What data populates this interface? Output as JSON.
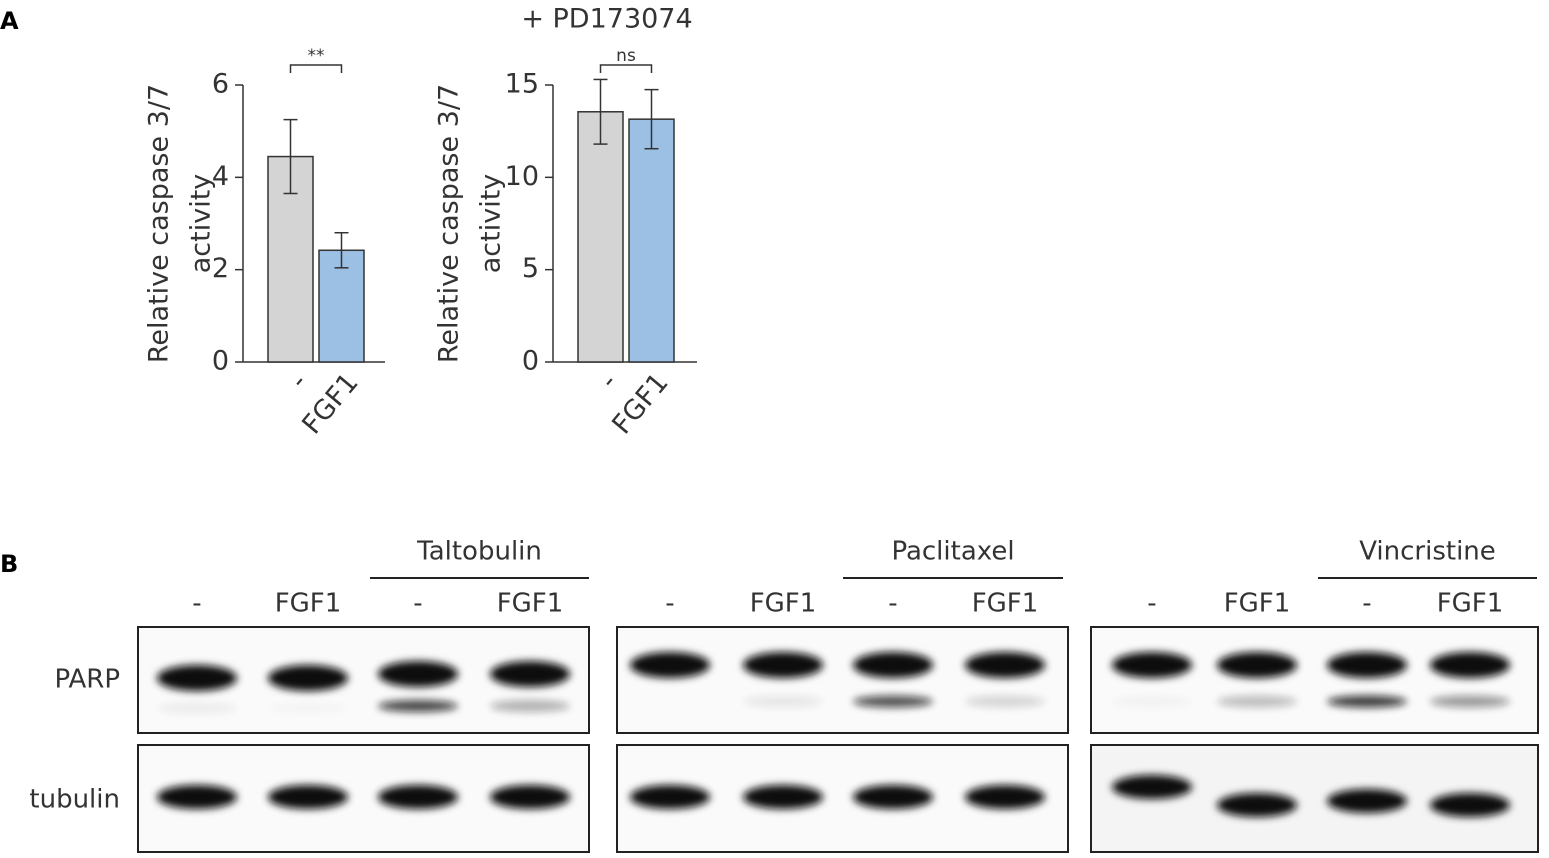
{
  "panel_labels": [
    "A",
    "B"
  ],
  "chart_data": [
    {
      "type": "bar",
      "y_label": [
        "Relative caspase 3/7",
        "activity"
      ],
      "categories": [
        "-",
        "FGF1"
      ],
      "values": [
        4.45,
        2.42
      ],
      "errors": [
        0.8,
        0.38
      ],
      "colors": [
        "#d4d4d4",
        "#9cbfe4"
      ],
      "ylim": [
        0,
        6
      ],
      "yticks": [
        0,
        2,
        4,
        6
      ],
      "significance": "**"
    },
    {
      "type": "bar",
      "title": "+ PD173074",
      "y_label": [
        "Relative caspase 3/7",
        "activity"
      ],
      "categories": [
        "-",
        "FGF1"
      ],
      "values": [
        13.55,
        13.15
      ],
      "errors": [
        1.75,
        1.6
      ],
      "colors": [
        "#d4d4d4",
        "#9cbfe4"
      ],
      "ylim": [
        0,
        15
      ],
      "yticks": [
        0,
        5,
        10,
        15
      ],
      "significance": "ns"
    }
  ],
  "blots": {
    "rows": [
      "PARP",
      "tubulin"
    ],
    "groups": [
      {
        "treatment": "Taltobulin",
        "lanes": [
          "-",
          "FGF1",
          "-",
          "FGF1"
        ]
      },
      {
        "treatment": "Paclitaxel",
        "lanes": [
          "-",
          "FGF1",
          "-",
          "FGF1"
        ]
      },
      {
        "treatment": "Vincristine",
        "lanes": [
          "-",
          "FGF1",
          "-",
          "FGF1"
        ]
      }
    ]
  }
}
